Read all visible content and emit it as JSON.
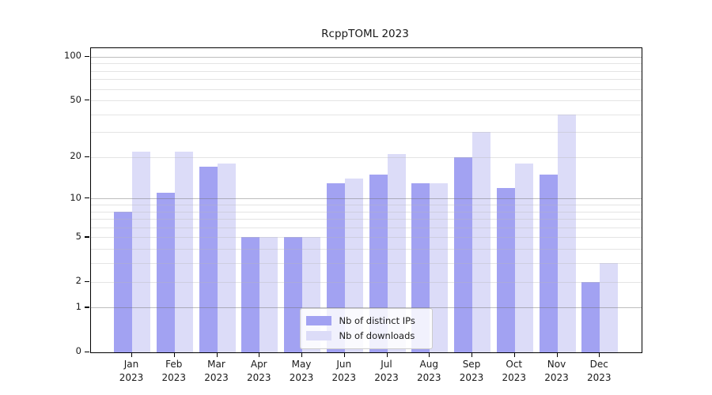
{
  "chart_data": {
    "type": "bar",
    "title": "RcppTOML 2023",
    "categories": [
      "Jan",
      "Feb",
      "Mar",
      "Apr",
      "May",
      "Jun",
      "Jul",
      "Aug",
      "Sep",
      "Oct",
      "Nov",
      "Dec"
    ],
    "category_year": "2023",
    "series": [
      {
        "name": "Nb of distinct IPs",
        "color": "#a2a2f2",
        "values": [
          8,
          11,
          17,
          5,
          5,
          13,
          15,
          13,
          20,
          12,
          15,
          2
        ]
      },
      {
        "name": "Nb of downloads",
        "color": "#dcdcf8",
        "values": [
          22,
          22,
          18,
          5,
          5,
          14,
          21,
          13,
          30,
          18,
          40,
          3
        ]
      }
    ],
    "y_scale": "log1p",
    "ylim": [
      0,
      100
    ],
    "y_ticks": [
      0,
      1,
      2,
      5,
      10,
      20,
      50,
      100
    ],
    "grid": "on",
    "grid_major": [
      1,
      10,
      100
    ],
    "grid_minor": [
      2,
      3,
      4,
      5,
      6,
      7,
      8,
      9,
      20,
      30,
      40,
      50,
      60,
      70,
      80,
      90
    ],
    "legend_position": "lower center"
  },
  "colors": {
    "grid_major": "rgba(110,110,110,0.45)",
    "grid_minor": "rgba(185,185,185,0.38)",
    "axis": "#000000"
  }
}
